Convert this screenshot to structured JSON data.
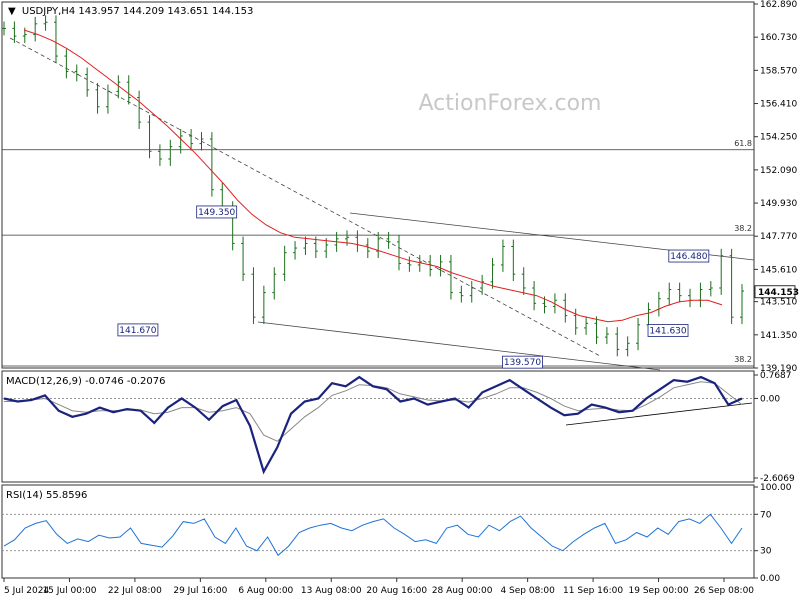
{
  "chart_data": {
    "type": "line",
    "symbol_line": "USDJPY,H4  143.957 144.209 143.651 144.153",
    "watermark": "ActionForex.com",
    "price_panel": {
      "ylim": [
        139.19,
        162.89
      ],
      "y_ticks": [
        "162.890",
        "160.730",
        "158.570",
        "156.410",
        "154.250",
        "152.090",
        "149.930",
        "147.770",
        "145.610",
        "143.510",
        "141.350",
        "139.190"
      ],
      "last_price": "144.153",
      "close": [
        161.3,
        160.8,
        160.9,
        161.6,
        161.7,
        159.5,
        158.5,
        158.3,
        157.3,
        156.2,
        157.2,
        157.8,
        156.8,
        155.2,
        153.3,
        152.8,
        153.6,
        154.3,
        153.8,
        154.1,
        150.8,
        149.6,
        147.3,
        145.3,
        142.5,
        144.1,
        145.3,
        146.7,
        147.0,
        147.3,
        146.8,
        147.2,
        147.6,
        147.7,
        147.2,
        146.8,
        147.6,
        147.4,
        146.0,
        145.9,
        146.1,
        145.6,
        146.1,
        144.1,
        143.9,
        144.4,
        144.8,
        145.9,
        147.1,
        145.3,
        144.4,
        143.4,
        143.2,
        143.6,
        142.6,
        141.8,
        142.1,
        141.2,
        141.4,
        140.4,
        140.8,
        142.0,
        143.0,
        143.7,
        144.3,
        143.9,
        143.6,
        144.3,
        144.4,
        146.5,
        142.5,
        144.2
      ],
      "ma": [
        161.2,
        160.9,
        160.5,
        160.0,
        159.4,
        158.7,
        158.0,
        157.3,
        156.6,
        155.8,
        155.0,
        154.1,
        153.2,
        152.2,
        151.2,
        150.1,
        149.2,
        148.5,
        148.0,
        147.7,
        147.6,
        147.5,
        147.4,
        147.3,
        147.1,
        146.8,
        146.5,
        146.2,
        146.0,
        145.8,
        145.4,
        145.1,
        144.8,
        144.5,
        144.3,
        144.1,
        143.9,
        143.5,
        143.0,
        142.6,
        142.4,
        142.2,
        142.3,
        142.6,
        142.8,
        143.2,
        143.5,
        143.6,
        143.6,
        143.3
      ],
      "levels": [
        {
          "label": "61.8",
          "value": 153.4
        },
        {
          "label": "38.2",
          "value": 147.84
        },
        {
          "label": "38.2",
          "value": 139.32
        }
      ],
      "callouts": [
        {
          "label": "149.350",
          "value": 149.35,
          "index": 22
        },
        {
          "label": "141.670",
          "value": 141.67,
          "index": 15
        },
        {
          "label": "139.570",
          "value": 139.57,
          "index": 52
        },
        {
          "label": "146.480",
          "value": 146.48,
          "index": 68
        },
        {
          "label": "141.630",
          "value": 141.63,
          "index": 66
        }
      ]
    },
    "macd_panel": {
      "title": "MACD(12,26,9) -0.0746 -0.2076",
      "ylim": [
        -2.6069,
        0.7687
      ],
      "y_ticks": [
        "0.7687",
        "0.00",
        "-2.6069"
      ],
      "macd": [
        0.0,
        -0.1,
        -0.05,
        0.1,
        -0.4,
        -0.6,
        -0.5,
        -0.3,
        -0.45,
        -0.35,
        -0.4,
        -0.8,
        -0.3,
        0.0,
        -0.3,
        -0.7,
        -0.25,
        -0.05,
        -0.9,
        -2.4,
        -1.6,
        -0.5,
        -0.1,
        0.0,
        0.5,
        0.4,
        0.7,
        0.4,
        0.3,
        -0.1,
        0.0,
        -0.2,
        -0.1,
        0.0,
        -0.3,
        0.2,
        0.4,
        0.6,
        0.3,
        0.0,
        -0.3,
        -0.55,
        -0.5,
        -0.2,
        -0.3,
        -0.45,
        -0.4,
        0.0,
        0.3,
        0.6,
        0.55,
        0.7,
        0.5,
        -0.2,
        0.0
      ],
      "signal": [
        -0.1,
        -0.1,
        -0.05,
        0.0,
        -0.2,
        -0.4,
        -0.45,
        -0.4,
        -0.4,
        -0.38,
        -0.38,
        -0.5,
        -0.45,
        -0.3,
        -0.3,
        -0.45,
        -0.4,
        -0.3,
        -0.5,
        -1.2,
        -1.4,
        -1.0,
        -0.6,
        -0.3,
        0.1,
        0.25,
        0.45,
        0.42,
        0.35,
        0.15,
        0.05,
        -0.05,
        -0.08,
        -0.05,
        -0.12,
        0.0,
        0.15,
        0.35,
        0.35,
        0.2,
        0.0,
        -0.25,
        -0.4,
        -0.35,
        -0.32,
        -0.38,
        -0.4,
        -0.2,
        0.05,
        0.35,
        0.45,
        0.55,
        0.5,
        0.15,
        -0.2
      ]
    },
    "rsi_panel": {
      "title": "RSI(14) 55.8596",
      "ylim": [
        0,
        100
      ],
      "y_ticks": [
        "100.00",
        "70",
        "30",
        "0.00"
      ],
      "values": [
        35,
        42,
        55,
        60,
        63,
        48,
        38,
        43,
        40,
        47,
        44,
        45,
        55,
        38,
        36,
        34,
        46,
        62,
        60,
        65,
        45,
        38,
        55,
        35,
        30,
        45,
        25,
        35,
        50,
        55,
        58,
        60,
        55,
        52,
        58,
        62,
        65,
        55,
        48,
        40,
        42,
        38,
        55,
        58,
        48,
        45,
        58,
        52,
        62,
        68,
        55,
        45,
        35,
        30,
        40,
        48,
        55,
        60,
        38,
        42,
        50,
        45,
        55,
        48,
        62,
        65,
        60,
        70,
        55,
        38,
        55
      ]
    },
    "x_ticks": [
      "5 Jul 2024",
      "15 Jul 00:00",
      "22 Jul 08:00",
      "29 Jul 16:00",
      "6 Aug 00:00",
      "13 Aug 08:00",
      "20 Aug 16:00",
      "28 Aug 00:00",
      "4 Sep 08:00",
      "11 Sep 16:00",
      "19 Sep 00:00",
      "26 Sep 08:00"
    ]
  }
}
